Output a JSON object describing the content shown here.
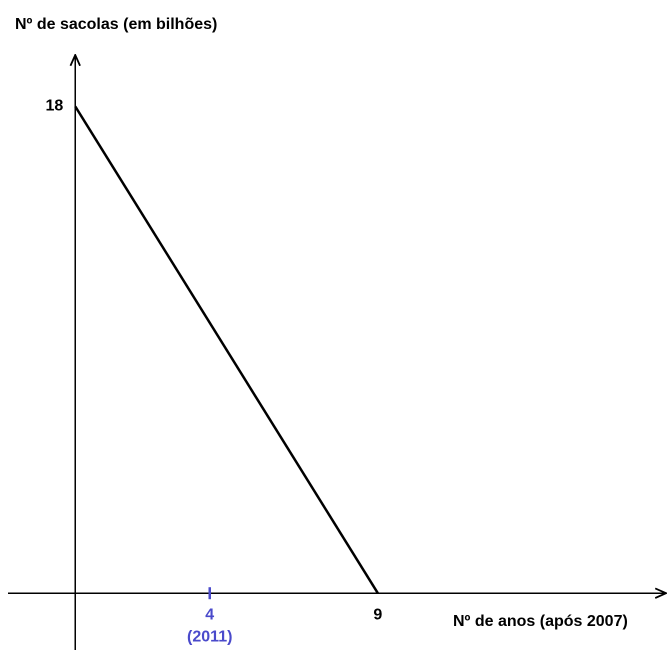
{
  "chart_data": {
    "type": "line",
    "y_label": "Nº de sacolas (em bilhões)",
    "x_label": "Nº de anos (após 2007)",
    "x": [
      0,
      9
    ],
    "values": [
      18,
      0
    ],
    "color": "#000000",
    "xlim": [
      -2,
      17.6
    ],
    "ylim": [
      -2.1,
      19.9
    ],
    "xticks": [
      4,
      9
    ],
    "yticks": [
      18
    ],
    "highlight": {
      "x": 4,
      "label": "(2011)",
      "color": "#4a4acb"
    },
    "grid": false
  }
}
